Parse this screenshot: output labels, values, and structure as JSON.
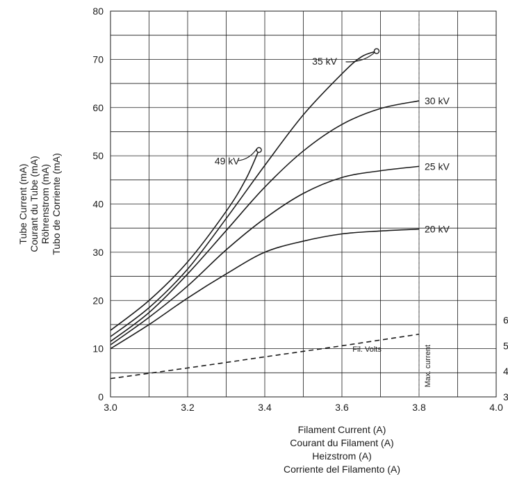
{
  "chart_data": {
    "type": "line",
    "title": "",
    "xlabel": [
      "Filament Current (A)",
      "Courant du Filament (A)",
      "Heizstrom (A)",
      "Corriente del Filamento (A)"
    ],
    "ylabel": [
      "Tube Current (mA)",
      "Courant du Tube (mA)",
      "Röhrenstrom (mA)",
      "Tubo de Corriente (mA)"
    ],
    "xlim": [
      3.0,
      4.0
    ],
    "ylim": [
      0,
      80
    ],
    "x_ticks": [
      "3.0",
      "3.2",
      "3.4",
      "3.6",
      "3.8",
      "4.0"
    ],
    "y_ticks": [
      "0",
      "10",
      "20",
      "30",
      "40",
      "50",
      "60",
      "70",
      "80"
    ],
    "right_ticks": [
      {
        "label": "3",
        "y": 0
      },
      {
        "label": "4",
        "y": 5.3
      },
      {
        "label": "5",
        "y": 10.6
      },
      {
        "label": "6",
        "y": 15.9
      }
    ],
    "grid": true,
    "series": [
      {
        "name": "20 kV",
        "x": [
          3.0,
          3.1,
          3.2,
          3.3,
          3.4,
          3.5,
          3.6,
          3.7,
          3.8
        ],
        "y": [
          10,
          15,
          20.5,
          25.5,
          30,
          32.3,
          33.8,
          34.4,
          34.8
        ],
        "end_marker": false
      },
      {
        "name": "25 kV",
        "x": [
          3.0,
          3.1,
          3.2,
          3.3,
          3.4,
          3.5,
          3.6,
          3.7,
          3.8
        ],
        "y": [
          10.8,
          16.5,
          23,
          30.5,
          37,
          42.2,
          45.5,
          46.9,
          47.8
        ],
        "end_marker": false
      },
      {
        "name": "30 kV",
        "x": [
          3.0,
          3.1,
          3.2,
          3.3,
          3.4,
          3.5,
          3.6,
          3.7,
          3.8
        ],
        "y": [
          11.5,
          17.5,
          25.5,
          34.5,
          43.5,
          51,
          56.5,
          59.8,
          61.4
        ],
        "end_marker": false
      },
      {
        "name": "35 kV",
        "x": [
          3.0,
          3.1,
          3.2,
          3.3,
          3.4,
          3.5,
          3.6,
          3.65,
          3.69
        ],
        "y": [
          12.5,
          18.5,
          26.5,
          37,
          48,
          58.5,
          67,
          70.5,
          71.7
        ],
        "end_marker": true
      },
      {
        "name": "49 kV",
        "x": [
          3.0,
          3.1,
          3.2,
          3.3,
          3.35,
          3.385
        ],
        "y": [
          13.8,
          20,
          28,
          38.5,
          45,
          51.2
        ],
        "end_marker": true
      },
      {
        "name": "Fil. Volts",
        "x": [
          3.0,
          3.2,
          3.4,
          3.6,
          3.8
        ],
        "y": [
          3.8,
          6,
          8.3,
          10.6,
          13
        ],
        "dashed": true,
        "end_marker": false
      }
    ],
    "annotations": [
      {
        "text": "Max. current",
        "x": 3.8,
        "type": "vertical-dashed-line"
      }
    ]
  }
}
